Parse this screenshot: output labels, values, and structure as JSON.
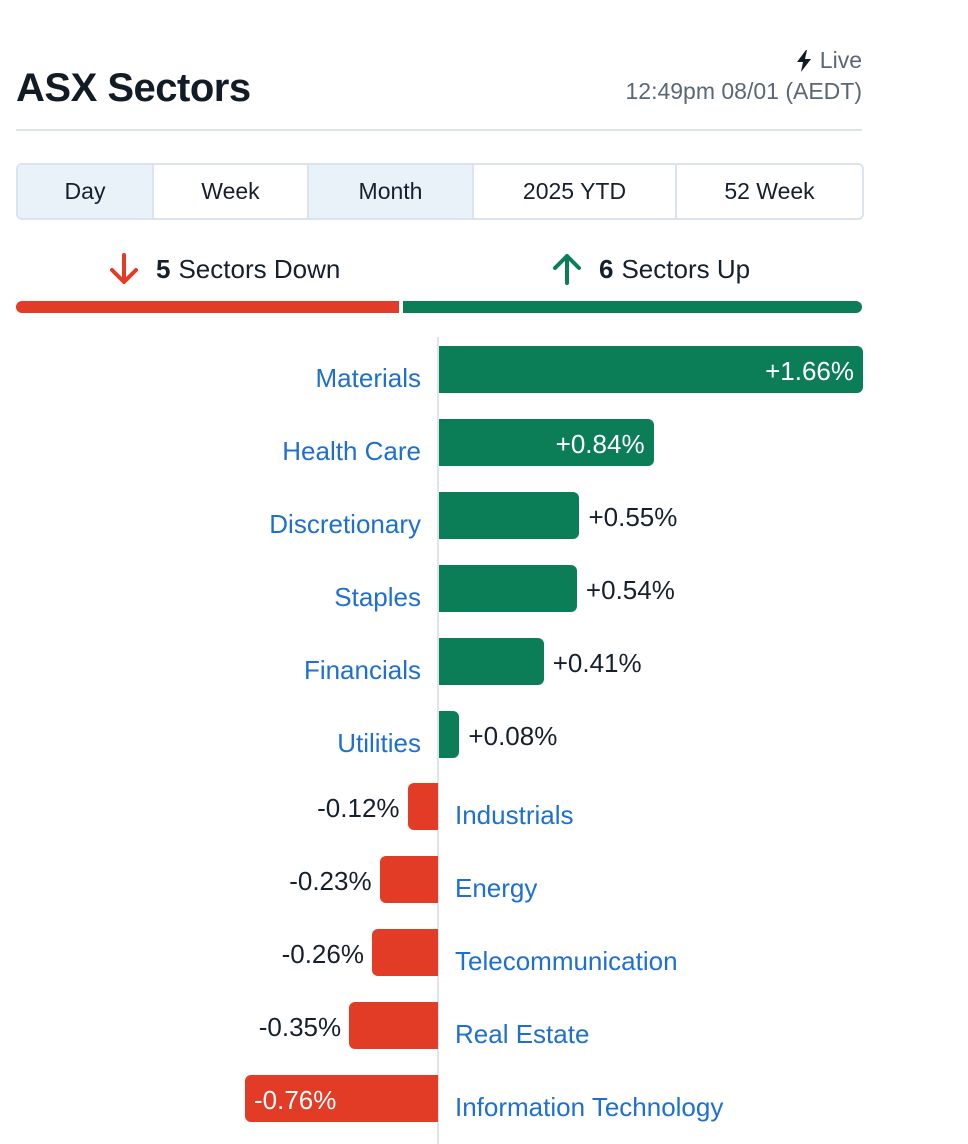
{
  "header": {
    "title": "ASX Sectors",
    "live_label": "Live",
    "timestamp": "12:49pm 08/01 (AEDT)"
  },
  "tabs": [
    {
      "label": "Day",
      "shaded": true
    },
    {
      "label": "Week",
      "shaded": false
    },
    {
      "label": "Month",
      "shaded": true
    },
    {
      "label": "2025 YTD",
      "shaded": false
    },
    {
      "label": "52 Week",
      "shaded": false
    }
  ],
  "summary": {
    "down_count": "5",
    "down_label": "Sectors Down",
    "up_count": "6",
    "up_label": "Sectors Up"
  },
  "colors": {
    "up": "#0b7d57",
    "down": "#e23b26",
    "link": "#1f6fd0"
  },
  "chart_data": {
    "type": "bar",
    "orientation": "horizontal",
    "unit": "%",
    "categories": [
      "Materials",
      "Health Care",
      "Discretionary",
      "Staples",
      "Financials",
      "Utilities",
      "Industrials",
      "Energy",
      "Telecommunication",
      "Real Estate",
      "Information Technology"
    ],
    "values": [
      1.66,
      0.84,
      0.55,
      0.54,
      0.41,
      0.08,
      -0.12,
      -0.23,
      -0.26,
      -0.35,
      -0.76
    ],
    "value_labels": [
      "+1.66%",
      "+0.84%",
      "+0.55%",
      "+0.54%",
      "+0.41%",
      "+0.08%",
      "-0.12%",
      "-0.23%",
      "-0.26%",
      "-0.35%",
      "-0.76%"
    ],
    "xlim": [
      -0.76,
      1.66
    ]
  }
}
